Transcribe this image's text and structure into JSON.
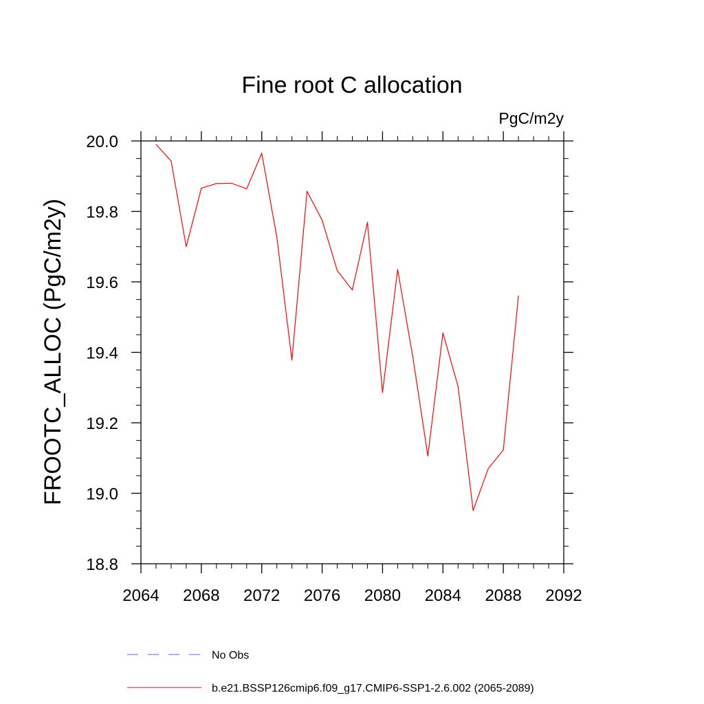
{
  "chart_data": {
    "type": "line",
    "title": "Fine root C allocation",
    "units": "PgC/m2y",
    "ylabel": "FROOTC_ALLOC  (PgC/m2y)",
    "xlabel": "",
    "xlim": [
      2064,
      2092
    ],
    "ylim": [
      18.8,
      20.0
    ],
    "x_major_ticks": [
      2064,
      2068,
      2072,
      2076,
      2080,
      2084,
      2088,
      2092
    ],
    "x_tick_labels": [
      "2064",
      "2068",
      "2072",
      "2076",
      "2080",
      "2084",
      "2088",
      "2092"
    ],
    "y_major_ticks": [
      18.8,
      19.0,
      19.2,
      19.4,
      19.6,
      19.8,
      20.0
    ],
    "y_tick_labels": [
      "18.8",
      "19.0",
      "19.2",
      "19.4",
      "19.6",
      "19.8",
      "20.0"
    ],
    "x_minor_step": 1,
    "y_minor_step": 0.05,
    "grid": false,
    "series": [
      {
        "name": "b.e21.BSSP126cmip6.f09_g17.CMIP6-SSP1-2.6.002 (2065-2089)",
        "color": "#ff0000",
        "x": [
          2065,
          2066,
          2067,
          2068,
          2069,
          2070,
          2071,
          2072,
          2073,
          2074,
          2075,
          2076,
          2077,
          2078,
          2079,
          2080,
          2081,
          2082,
          2083,
          2084,
          2085,
          2086,
          2087,
          2088,
          2089
        ],
        "values": [
          19.99,
          19.943,
          19.7,
          19.866,
          19.879,
          19.88,
          19.864,
          19.965,
          19.727,
          19.378,
          19.857,
          19.775,
          19.632,
          19.577,
          19.769,
          19.286,
          19.635,
          19.388,
          19.106,
          19.455,
          19.303,
          18.951,
          19.07,
          19.123,
          19.56
        ]
      }
    ],
    "legend": [
      {
        "label": "No Obs",
        "style": "dashed",
        "color": "#6a64c8"
      },
      {
        "label": "b.e21.BSSP126cmip6.f09_g17.CMIP6-SSP1-2.6.002 (2065-2089)",
        "style": "solid",
        "color": "#ff0000"
      }
    ],
    "legend_position": "bottom"
  }
}
